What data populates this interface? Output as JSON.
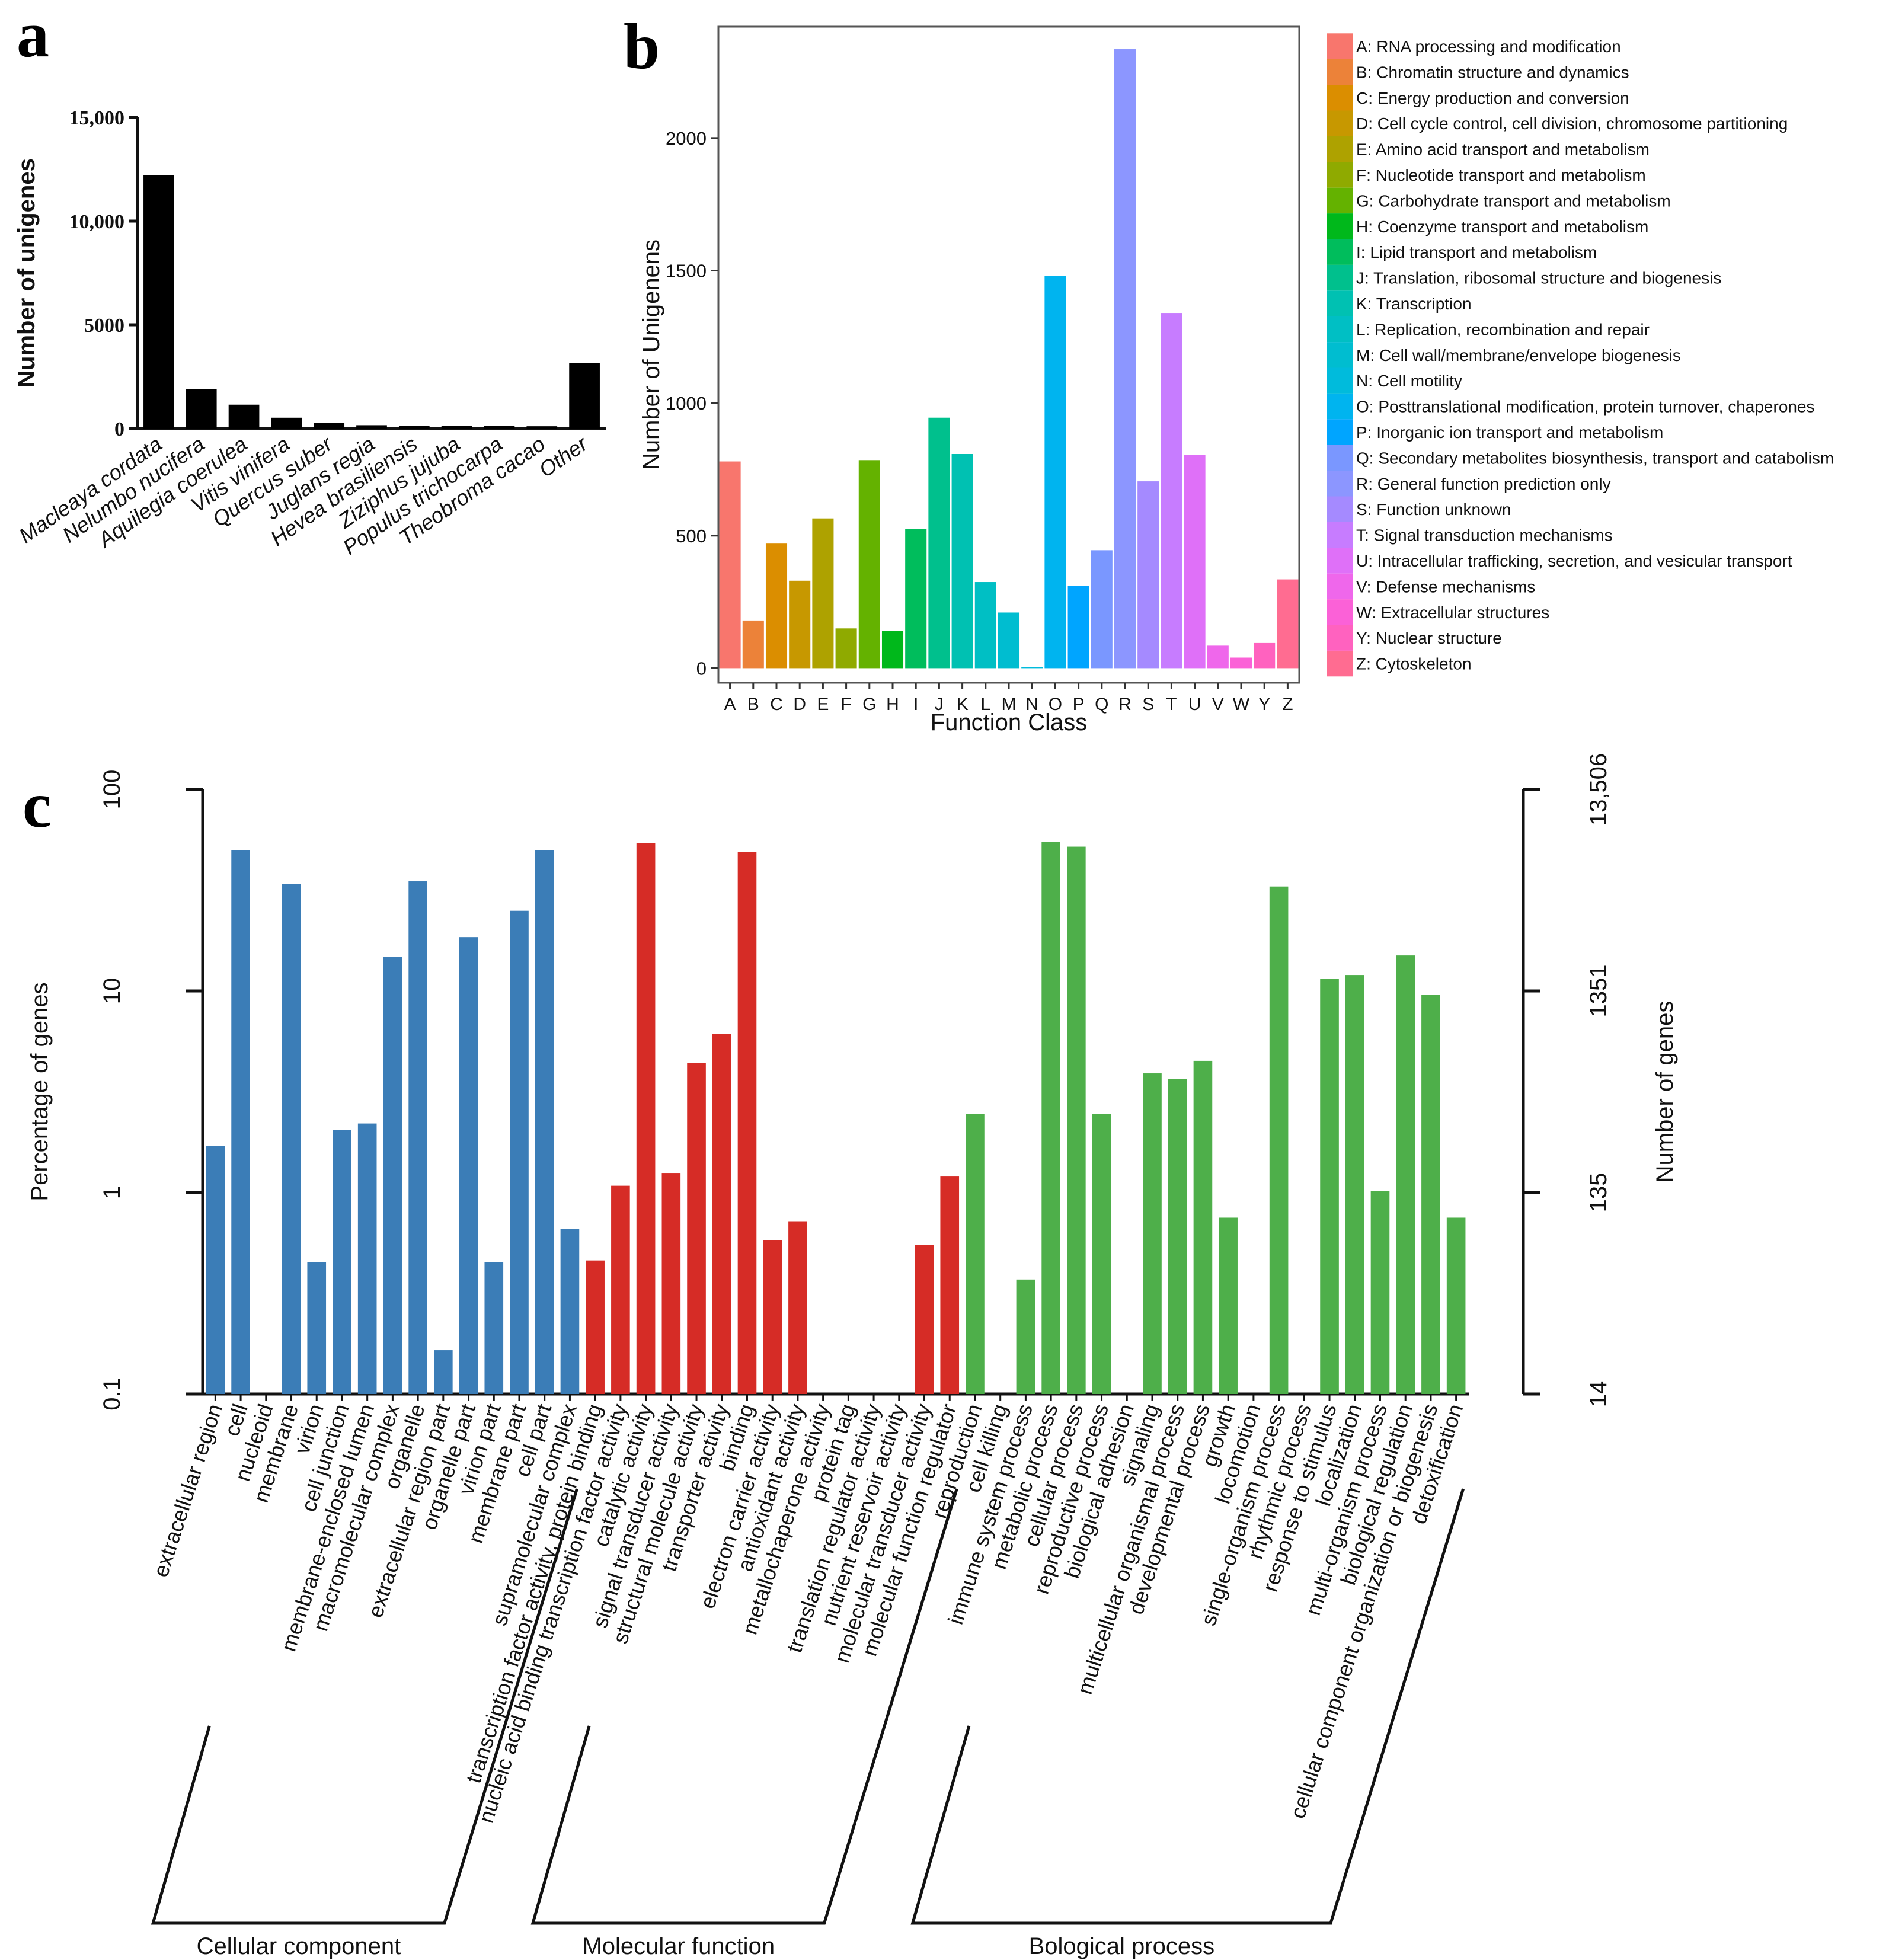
{
  "figure_labels": {
    "a": "a",
    "b": "b",
    "c": "c"
  },
  "chart_data": [
    {
      "type": "bar",
      "panel": "a",
      "title": "",
      "xlabel": "",
      "ylabel": "Number of unigenes",
      "ylim": [
        0,
        15000
      ],
      "yticks": [
        0,
        5000,
        10000,
        15000
      ],
      "ytick_labels": [
        "0",
        "5000",
        "10,000",
        "15,000"
      ],
      "categories": [
        "Macleaya cordata",
        "Nelumbo nucifera",
        "Aquilegia coerulea",
        "Vitis vinifera",
        "Quercus suber",
        "Juglans regia",
        "Hevea brasiliensis",
        "Ziziphus jujuba",
        "Populus trichocarpa",
        "Theobroma cacao",
        "Other"
      ],
      "values": [
        12200,
        1900,
        1150,
        520,
        280,
        160,
        140,
        130,
        120,
        110,
        3150
      ],
      "color": "#000000"
    },
    {
      "type": "bar",
      "panel": "b",
      "title": "",
      "xlabel": "Function Class",
      "ylabel": "Number of Unigenens",
      "ylim": [
        -55,
        2420
      ],
      "yticks": [
        0,
        500,
        1000,
        1500,
        2000
      ],
      "ytick_labels": [
        "0",
        "500",
        "1000",
        "1500",
        "2000"
      ],
      "categories": [
        "A",
        "B",
        "C",
        "D",
        "E",
        "F",
        "G",
        "H",
        "I",
        "J",
        "K",
        "L",
        "M",
        "N",
        "O",
        "P",
        "Q",
        "R",
        "S",
        "T",
        "U",
        "V",
        "W",
        "Y",
        "Z"
      ],
      "values": [
        780,
        180,
        470,
        330,
        565,
        150,
        785,
        140,
        525,
        945,
        808,
        325,
        210,
        5,
        1480,
        310,
        445,
        2335,
        705,
        1340,
        805,
        85,
        40,
        95,
        335
      ],
      "colors": [
        "#F8766D",
        "#EC8239",
        "#DB8E00",
        "#C79800",
        "#AEA200",
        "#8FAA00",
        "#64B200",
        "#00B81B",
        "#00BD5C",
        "#00C08D",
        "#00C1B2",
        "#00BFC4",
        "#00BDD0",
        "#00BBDC",
        "#00B4EF",
        "#00A5FF",
        "#7A97FF",
        "#8C96FF",
        "#A58AFF",
        "#C77CFF",
        "#DF70F8",
        "#EF67EB",
        "#FB61D7",
        "#FF62BF",
        "#FF6C91"
      ],
      "legend_position": "right",
      "legend": [
        "A: RNA processing and modification",
        "B: Chromatin structure and dynamics",
        "C: Energy production and conversion",
        "D: Cell cycle control, cell division, chromosome partitioning",
        "E: Amino acid transport and metabolism",
        "F: Nucleotide transport and metabolism",
        "G: Carbohydrate transport and metabolism",
        "H: Coenzyme transport and metabolism",
        "I: Lipid transport and metabolism",
        "J: Translation, ribosomal structure and biogenesis",
        "K: Transcription",
        "L: Replication, recombination and repair",
        "M: Cell wall/membrane/envelope biogenesis",
        "N: Cell motility",
        "O: Posttranslational modification, protein turnover, chaperones",
        "P: Inorganic ion transport and metabolism",
        "Q: Secondary metabolites biosynthesis, transport and catabolism",
        "R: General function prediction only",
        "S: Function unknown",
        "T: Signal transduction mechanisms",
        "U: Intracellular trafficking, secretion, and vesicular transport",
        "V: Defense mechanisms",
        "W: Extracellular structures",
        "Y: Nuclear structure",
        "Z: Cytoskeleton"
      ]
    },
    {
      "type": "bar",
      "panel": "c",
      "scale": "log",
      "title": "",
      "ylabel": "Percentage of genes",
      "y2label": "Number of genes",
      "ylim": [
        0.1,
        100
      ],
      "yticks": [
        0.1,
        1,
        10,
        100
      ],
      "ytick_labels": [
        "0.1",
        "1",
        "10",
        "100"
      ],
      "y2ticks": [
        0.1,
        1,
        10,
        100
      ],
      "y2tick_labels": [
        "14",
        "135",
        "1351",
        "13,506"
      ],
      "categories": [
        "extracellular region",
        "cell",
        "nucleoid",
        "membrane",
        "virion",
        "cell junction",
        "membrane-enclosed lumen",
        "macromolecular complex",
        "organelle",
        "extracellular region part",
        "organelle part",
        "virion part",
        "membrane part",
        "cell part",
        "supramolecular complex",
        "transcription factor activity, protein binding",
        "nucleic acid binding transcription factor activity",
        "catalytic activity",
        "signal transducer activity",
        "structural molecule activity",
        "transporter activity",
        "binding",
        "electron carrier activity",
        "antioxidant activity",
        "metallochaperone activity",
        "protein tag",
        "translation regulator activity",
        "nutrient reservoir activity",
        "molecular transducer activity",
        "molecular function regulator",
        "reproduction",
        "cell killing",
        "immune system process",
        "metabolic process",
        "cellular process",
        "reproductive process",
        "biological adhesion",
        "signaling",
        "multicellular organismal process",
        "developmental process",
        "growth",
        "locomotion",
        "single-organism process",
        "rhythmic process",
        "response to stimulus",
        "localization",
        "multi-organism process",
        "biological regulation",
        "cellular component organization or biogenesis",
        "detoxification"
      ],
      "values": [
        1.7,
        50,
        null,
        34,
        0.45,
        2.05,
        2.2,
        14.8,
        35,
        0.165,
        18.5,
        0.45,
        25,
        50,
        0.66,
        0.46,
        1.08,
        54,
        1.25,
        4.4,
        6.1,
        49,
        0.58,
        0.72,
        null,
        null,
        null,
        null,
        0.55,
        1.2,
        2.45,
        null,
        0.37,
        55,
        52,
        2.45,
        null,
        3.9,
        3.65,
        4.5,
        0.75,
        null,
        33,
        null,
        11.5,
        12,
        1.02,
        15,
        9.6,
        0.75
      ],
      "groups": [
        {
          "name": "Cellular component",
          "start": 0,
          "end": 14,
          "color": "#3B7DB7"
        },
        {
          "name": "Molecular function",
          "start": 15,
          "end": 29,
          "color": "#D62C26"
        },
        {
          "name": "Bological process",
          "start": 30,
          "end": 49,
          "color": "#4EAF4A"
        }
      ]
    }
  ]
}
